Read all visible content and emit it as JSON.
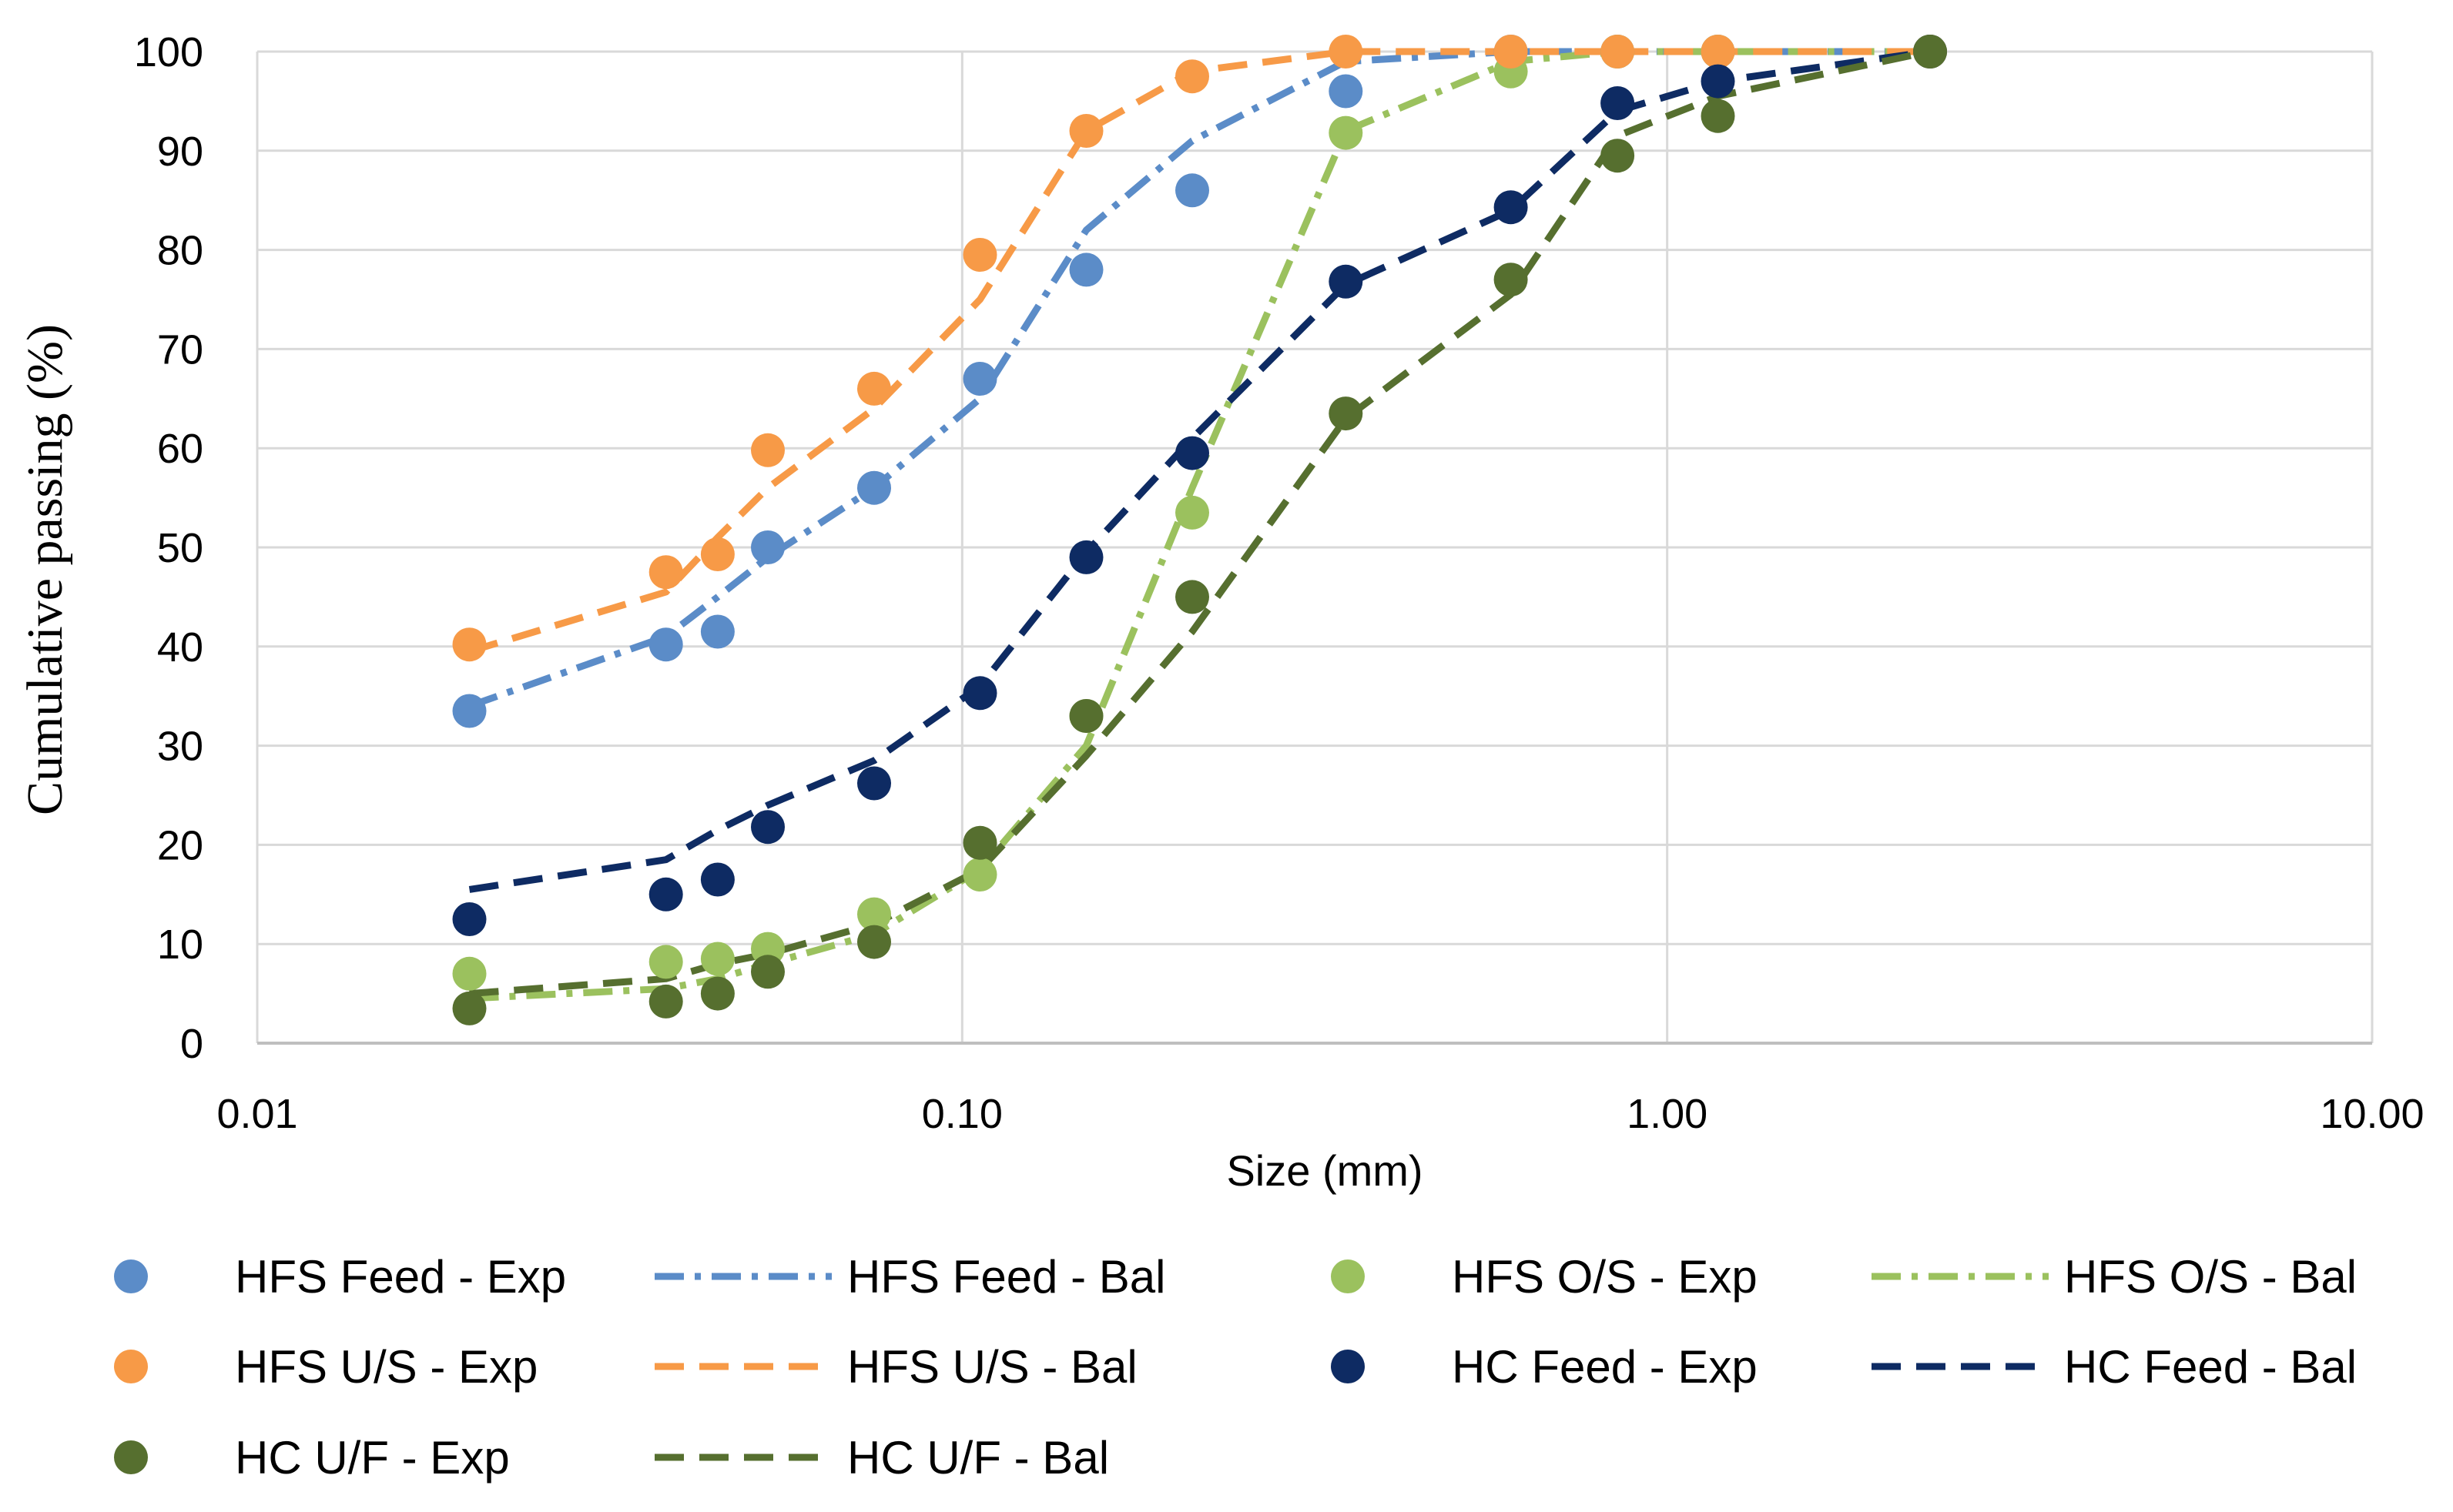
{
  "chart_data": {
    "type": "scatter",
    "title": "",
    "xlabel": "Size (mm)",
    "ylabel": "Cumulative passing (%)",
    "xscale": "log",
    "xlim": [
      0.01,
      10
    ],
    "ylim": [
      0,
      100
    ],
    "grid": true,
    "legend_position": "bottom",
    "x_tick_labels": [
      "0.01",
      "0.10",
      "1.00",
      "10.00"
    ],
    "y_tick_labels": [
      "0",
      "10",
      "20",
      "30",
      "40",
      "50",
      "60",
      "70",
      "80",
      "90",
      "100"
    ],
    "series": [
      {
        "name": "HFS Feed - Exp",
        "kind": "points",
        "color": "#5B8CC8",
        "x": [
          0.02,
          0.038,
          0.045,
          0.053,
          0.075,
          0.106,
          0.15,
          0.212,
          0.35,
          0.6,
          0.85,
          1.18,
          2.36
        ],
        "y": [
          33.5,
          40.2,
          41.5,
          50,
          56,
          67,
          78,
          86,
          96,
          100,
          100,
          100,
          100
        ]
      },
      {
        "name": "HFS Feed - Bal",
        "kind": "line",
        "dash": "dashdot",
        "color": "#5B8CC8",
        "x": [
          0.02,
          0.038,
          0.045,
          0.053,
          0.075,
          0.106,
          0.15,
          0.212,
          0.35,
          0.6,
          0.85,
          1.18,
          2.36
        ],
        "y": [
          34,
          41,
          45,
          49,
          56,
          65,
          82,
          91,
          99,
          100,
          100,
          100,
          100
        ]
      },
      {
        "name": "HFS O/S - Exp",
        "kind": "points",
        "color": "#9BC15E",
        "x": [
          0.02,
          0.038,
          0.045,
          0.053,
          0.075,
          0.106,
          0.15,
          0.212,
          0.35,
          0.6,
          0.85,
          1.18,
          2.36
        ],
        "y": [
          7,
          8.2,
          8.5,
          9.5,
          13,
          17,
          33,
          53.5,
          91.8,
          98,
          100,
          100,
          100
        ]
      },
      {
        "name": "HFS O/S - Bal",
        "kind": "line",
        "dash": "dashdot",
        "color": "#9BC15E",
        "x": [
          0.02,
          0.038,
          0.045,
          0.053,
          0.075,
          0.106,
          0.15,
          0.212,
          0.35,
          0.6,
          0.85,
          1.18,
          2.36
        ],
        "y": [
          4.5,
          5.5,
          6.5,
          8,
          11,
          17.5,
          30,
          56,
          92,
          99,
          100,
          100,
          100
        ]
      },
      {
        "name": "HFS U/S - Exp",
        "kind": "points",
        "color": "#F79A47",
        "x": [
          0.02,
          0.038,
          0.045,
          0.053,
          0.075,
          0.106,
          0.15,
          0.212,
          0.35,
          0.6,
          0.85,
          1.18,
          2.36
        ],
        "y": [
          40.2,
          47.5,
          49.3,
          59.8,
          66,
          79.5,
          92,
          97.5,
          100,
          100,
          100,
          100,
          100
        ]
      },
      {
        "name": "HFS U/S - Bal",
        "kind": "line",
        "dash": "dash",
        "color": "#F79A47",
        "x": [
          0.02,
          0.038,
          0.045,
          0.053,
          0.075,
          0.106,
          0.15,
          0.212,
          0.35,
          0.6,
          0.85,
          1.18,
          2.36
        ],
        "y": [
          39.5,
          45.5,
          51,
          56,
          64,
          75,
          92,
          98,
          100,
          100,
          100,
          100,
          100
        ]
      },
      {
        "name": "HC Feed - Exp",
        "kind": "points",
        "color": "#0E2B63",
        "x": [
          0.02,
          0.038,
          0.045,
          0.053,
          0.075,
          0.106,
          0.15,
          0.212,
          0.35,
          0.6,
          0.85,
          1.18,
          2.36
        ],
        "y": [
          12.5,
          15,
          16.5,
          21.8,
          26.2,
          35.3,
          49,
          59.5,
          76.8,
          84.3,
          94.8,
          97,
          100
        ]
      },
      {
        "name": "HC Feed - Bal",
        "kind": "line",
        "dash": "dash",
        "color": "#0E2B63",
        "x": [
          0.02,
          0.038,
          0.045,
          0.053,
          0.075,
          0.106,
          0.15,
          0.212,
          0.35,
          0.6,
          0.85,
          1.18,
          2.36
        ],
        "y": [
          15.5,
          18.5,
          21.5,
          24,
          28.5,
          36,
          49.5,
          61,
          76.5,
          84,
          94,
          97,
          100
        ]
      },
      {
        "name": "HC U/F - Exp",
        "kind": "points",
        "color": "#566F2F",
        "x": [
          0.02,
          0.038,
          0.045,
          0.053,
          0.075,
          0.106,
          0.15,
          0.212,
          0.35,
          0.6,
          0.85,
          1.18,
          2.36
        ],
        "y": [
          3.5,
          4.2,
          5,
          7.2,
          10.2,
          20.2,
          33,
          45,
          63.5,
          77,
          89.5,
          93.5,
          100
        ]
      },
      {
        "name": "HC U/F - Bal",
        "kind": "line",
        "dash": "dash",
        "color": "#566F2F",
        "x": [
          0.02,
          0.038,
          0.045,
          0.053,
          0.075,
          0.106,
          0.15,
          0.212,
          0.35,
          0.6,
          0.85,
          1.18,
          2.36
        ],
        "y": [
          5,
          6.5,
          8,
          9,
          12,
          17.5,
          29,
          41.5,
          63,
          75.5,
          91.5,
          95.5,
          100
        ]
      }
    ],
    "legend_order": [
      "HFS Feed - Exp",
      "HFS Feed - Bal",
      "HFS O/S - Exp",
      "HFS O/S - Bal",
      "HFS U/S - Exp",
      "HFS U/S - Bal",
      "HC Feed - Exp",
      "HC Feed - Bal",
      "HC U/F - Exp",
      "HC U/F - Bal"
    ]
  }
}
